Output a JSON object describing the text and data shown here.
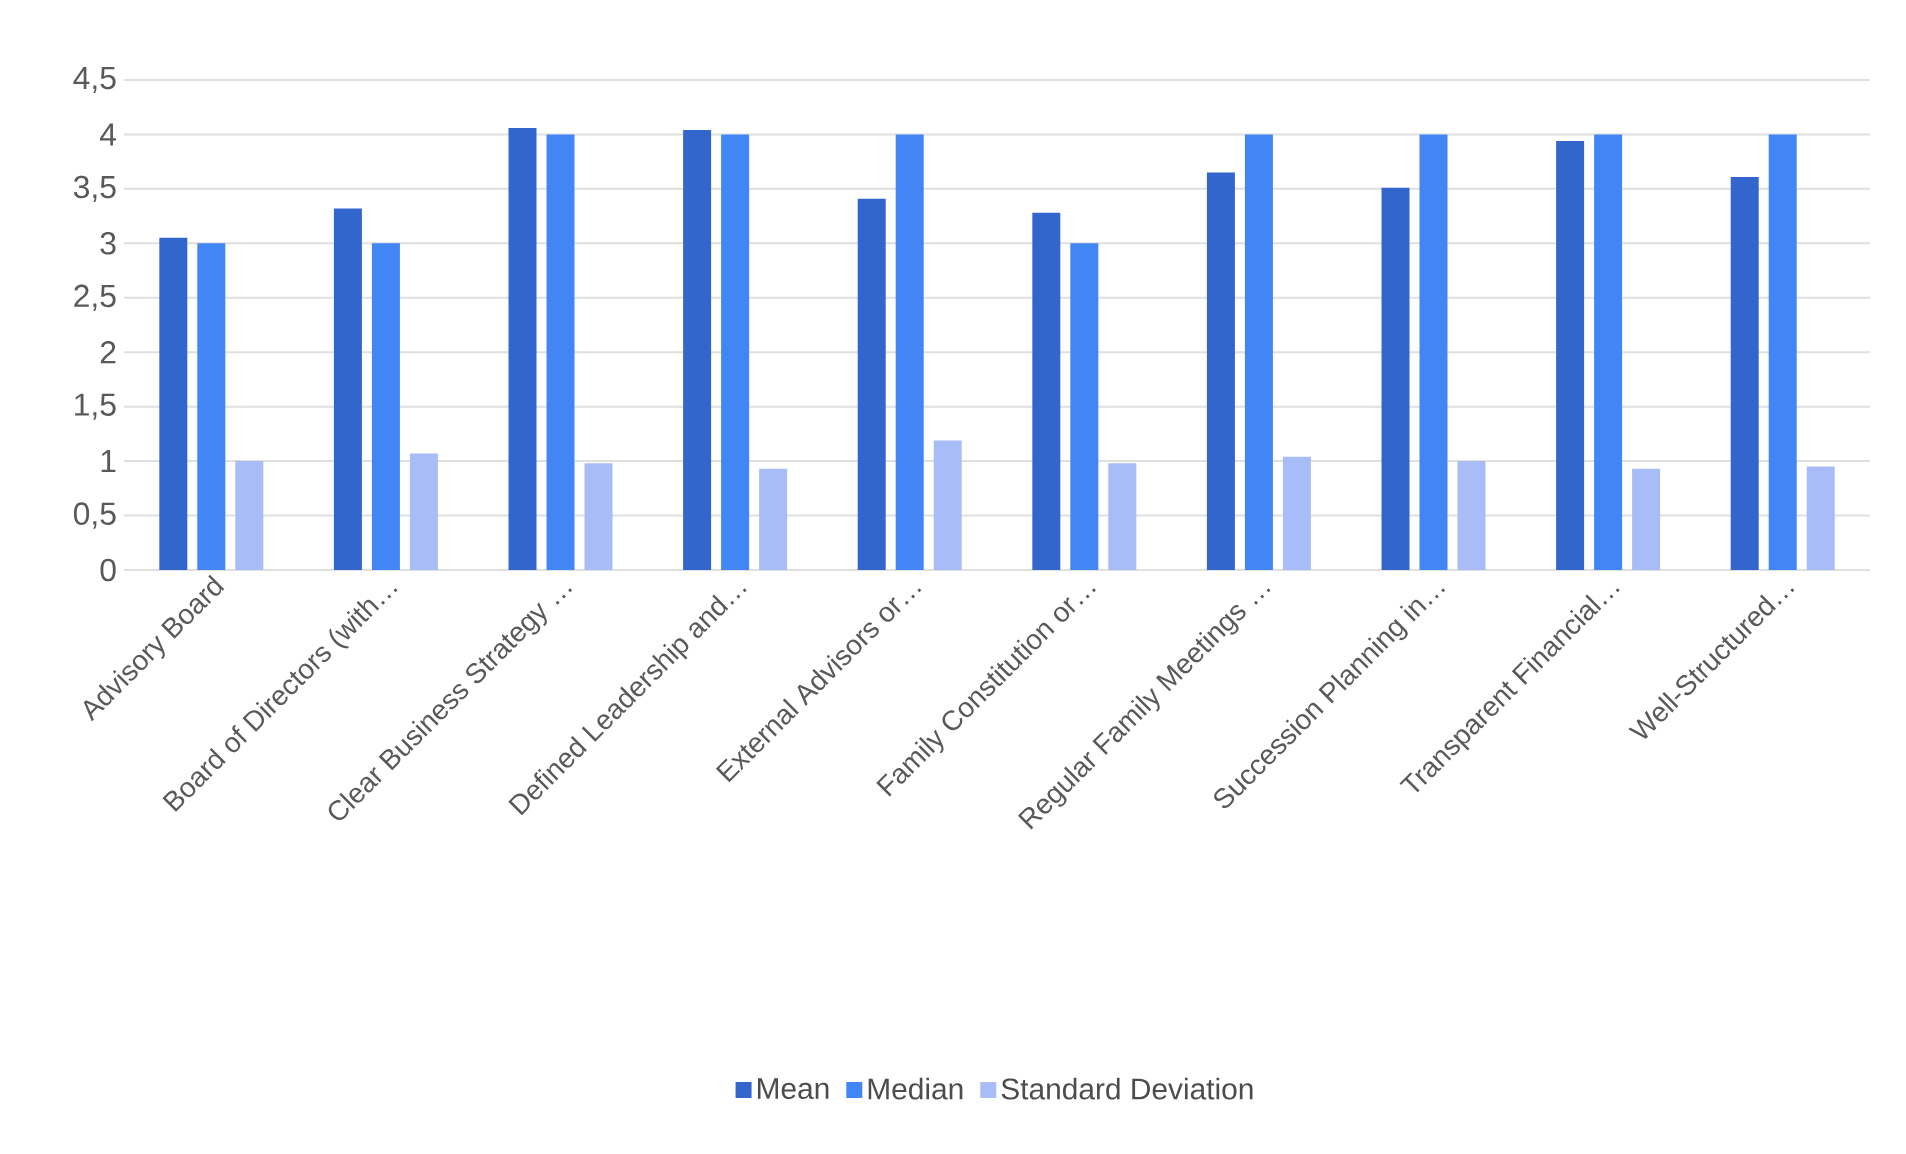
{
  "chart_data": {
    "type": "bar",
    "categories": [
      "Advisory Board",
      "Board of Directors (with…",
      "Clear Business Strategy …",
      "Defined Leadership and…",
      "External Advisors or…",
      "Family Constitution or…",
      "Regular Family Meetings …",
      "Succession Planning in…",
      "Transparent Financial…",
      "Well-Structured…"
    ],
    "series": [
      {
        "name": "Mean",
        "color": "#3366cc",
        "values": [
          3.05,
          3.32,
          4.06,
          4.04,
          3.41,
          3.28,
          3.65,
          3.51,
          3.94,
          3.61
        ]
      },
      {
        "name": "Median",
        "color": "#4285f4",
        "values": [
          3,
          3,
          4,
          4,
          4,
          3,
          4,
          4,
          4,
          4
        ]
      },
      {
        "name": "Standard Deviation",
        "color": "#a8bcf8",
        "values": [
          1.0,
          1.07,
          0.98,
          0.93,
          1.19,
          0.98,
          1.04,
          1.0,
          0.93,
          0.95
        ]
      }
    ],
    "ylim": [
      0,
      4.5
    ],
    "yticks": [
      0,
      {
        "value": 0.5,
        "label": "0,5"
      },
      1,
      {
        "value": 1.5,
        "label": "1,5"
      },
      2,
      {
        "value": 2.5,
        "label": "2,5"
      },
      3,
      {
        "value": 3.5,
        "label": "3,5"
      },
      4,
      {
        "value": 4.5,
        "label": "4,5"
      }
    ],
    "grid": "y",
    "legend": "bottom"
  }
}
